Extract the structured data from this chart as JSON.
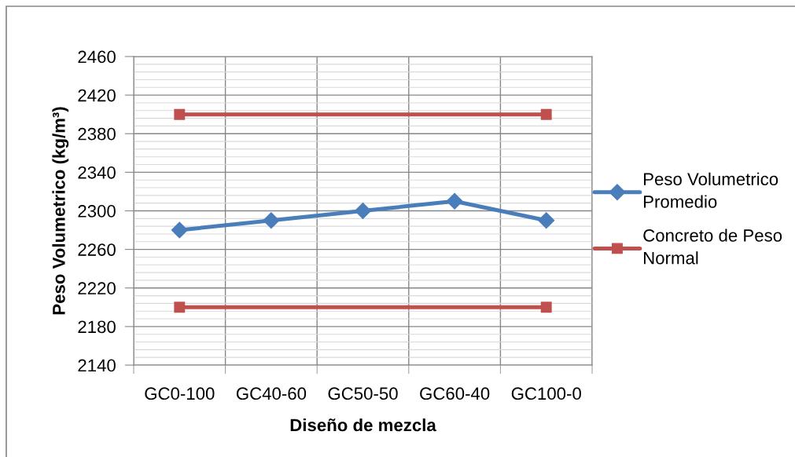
{
  "chart_data": {
    "type": "line",
    "categories": [
      "GC0-100",
      "GC40-60",
      "GC50-50",
      "GC60-40",
      "GC100-0"
    ],
    "xlabel": "Diseño de mezcla",
    "ylabel": "Peso Volumetrico (kg/m³)",
    "ylim": [
      2140,
      2460
    ],
    "yticks": [
      2140,
      2180,
      2220,
      2260,
      2300,
      2340,
      2380,
      2420,
      2460
    ],
    "grid": true,
    "legend": "right",
    "line_style": "solid",
    "series": [
      {
        "name": "Peso Volumetrico Promedio",
        "color": "#4a7ebb",
        "marker": "diamond",
        "values": [
          2280,
          2290,
          2300,
          2310,
          2290
        ]
      },
      {
        "name": "Concreto de Peso Normal",
        "color": "#c0504d",
        "marker": "square",
        "x": [
          "GC0-100",
          "GC100-0"
        ],
        "values": [
          2400,
          2400
        ]
      },
      {
        "color": "#c0504d",
        "marker": "square",
        "x": [
          "GC0-100",
          "GC100-0"
        ],
        "values": [
          2200,
          2200
        ]
      }
    ]
  }
}
